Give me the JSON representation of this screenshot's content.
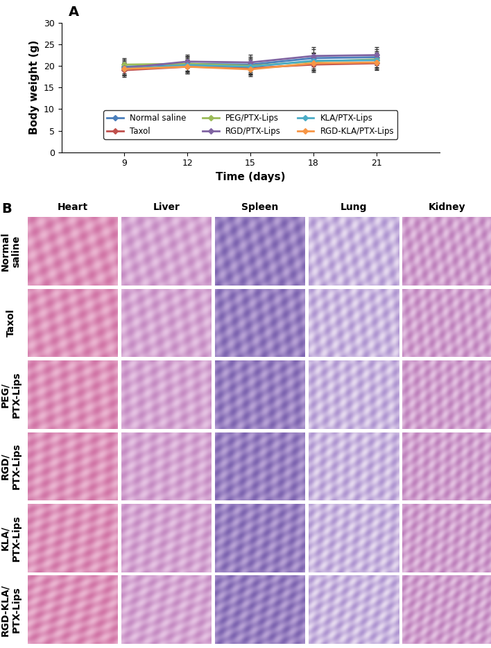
{
  "chart_data": {
    "type": "line",
    "title": "A",
    "x_label": "Time (days)",
    "y_label": "Body weight (g)",
    "x": [
      9,
      12,
      15,
      18,
      21
    ],
    "xlim": [
      6,
      24
    ],
    "xticks": [
      9,
      12,
      15,
      18,
      21
    ],
    "ylim": [
      0,
      30
    ],
    "yticks": [
      0,
      5,
      10,
      15,
      20,
      25,
      30
    ],
    "grid": false,
    "legend": "lower center",
    "marker": "D",
    "line_style": "solid",
    "series": [
      {
        "name": "Normal saline",
        "color": "#4a7ebb",
        "values": [
          19.8,
          20.5,
          20.3,
          21.8,
          22.0
        ],
        "errors": [
          1.6,
          1.7,
          1.8,
          2.0,
          1.9
        ]
      },
      {
        "name": "Taxol",
        "color": "#c0504d",
        "values": [
          19.0,
          19.8,
          19.5,
          20.3,
          20.6
        ],
        "errors": [
          1.5,
          1.6,
          1.5,
          1.8,
          1.6
        ]
      },
      {
        "name": "PEG/PTX-Lips",
        "color": "#9bbb59",
        "values": [
          20.3,
          20.5,
          20.0,
          21.0,
          21.5
        ],
        "errors": [
          1.4,
          1.6,
          1.7,
          1.9,
          1.8
        ]
      },
      {
        "name": "RGD/PTX-Lips",
        "color": "#8064a2",
        "values": [
          19.5,
          21.0,
          20.8,
          22.3,
          22.5
        ],
        "errors": [
          1.6,
          1.5,
          1.8,
          2.0,
          1.9
        ]
      },
      {
        "name": "KLA/PTX-Lips",
        "color": "#4bacc6",
        "values": [
          19.3,
          20.2,
          19.8,
          21.2,
          21.3
        ],
        "errors": [
          1.5,
          1.6,
          1.7,
          1.8,
          1.7
        ]
      },
      {
        "name": "RGD-KLA/PTX-Lips",
        "color": "#f79646",
        "values": [
          19.3,
          19.8,
          19.2,
          20.6,
          20.8
        ],
        "errors": [
          1.4,
          1.5,
          1.6,
          1.7,
          1.6
        ]
      }
    ]
  },
  "panel_b": {
    "label": "B",
    "columns": [
      "Heart",
      "Liver",
      "Spleen",
      "Lung",
      "Kidney"
    ],
    "rows": [
      "Normal\nsaline",
      "Taxol",
      "PEG/\nPTX-Lips",
      "RGD/\nPTX-Lips",
      "KLA/\nPTX-Lips",
      "RGD-KLA/\nPTX-Lips"
    ]
  }
}
